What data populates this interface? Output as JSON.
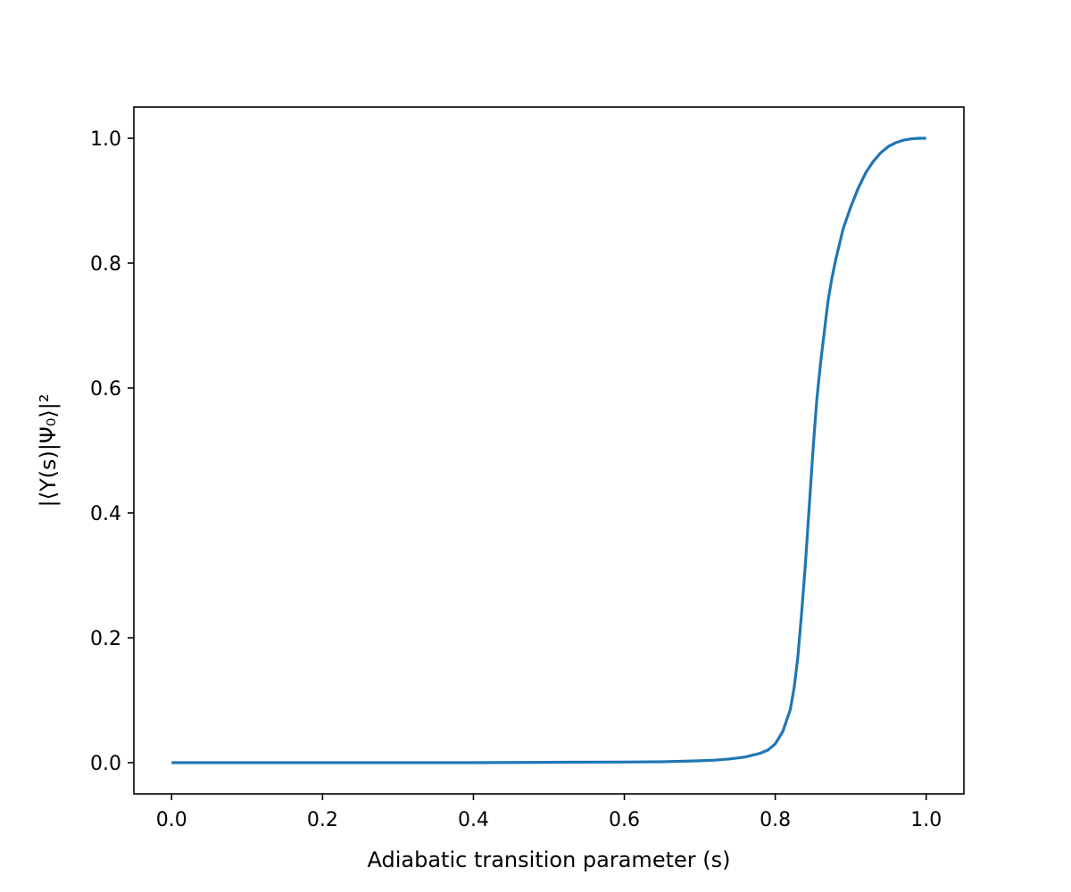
{
  "chart_data": {
    "type": "line",
    "title": "",
    "xlabel": "Adiabatic transition parameter (s)",
    "ylabel": "|⟨Υ(s)|Ψ₀⟩|²",
    "xlim": [
      -0.05,
      1.05
    ],
    "ylim": [
      -0.05,
      1.05
    ],
    "grid": false,
    "x_ticks": [
      0.0,
      0.2,
      0.4,
      0.6,
      0.8,
      1.0
    ],
    "x_tick_labels": [
      "0.0",
      "0.2",
      "0.4",
      "0.6",
      "0.8",
      "1.0"
    ],
    "y_ticks": [
      0.0,
      0.2,
      0.4,
      0.6,
      0.8,
      1.0
    ],
    "y_tick_labels": [
      "0.0",
      "0.2",
      "0.4",
      "0.6",
      "0.8",
      "1.0"
    ],
    "series": [
      {
        "color": "#1f77b4",
        "x": [
          0.0,
          0.1,
          0.2,
          0.3,
          0.4,
          0.5,
          0.6,
          0.65,
          0.7,
          0.72,
          0.74,
          0.76,
          0.78,
          0.79,
          0.8,
          0.81,
          0.82,
          0.825,
          0.83,
          0.835,
          0.84,
          0.845,
          0.85,
          0.855,
          0.86,
          0.865,
          0.87,
          0.875,
          0.88,
          0.885,
          0.89,
          0.9,
          0.91,
          0.92,
          0.93,
          0.94,
          0.95,
          0.96,
          0.97,
          0.98,
          0.99,
          1.0
        ],
        "y": [
          0.0,
          0.0,
          0.0,
          0.0,
          0.0,
          0.0005,
          0.001,
          0.0015,
          0.003,
          0.004,
          0.006,
          0.009,
          0.015,
          0.02,
          0.03,
          0.05,
          0.085,
          0.12,
          0.17,
          0.24,
          0.32,
          0.41,
          0.5,
          0.58,
          0.64,
          0.69,
          0.74,
          0.775,
          0.805,
          0.83,
          0.855,
          0.89,
          0.92,
          0.945,
          0.963,
          0.977,
          0.987,
          0.993,
          0.997,
          0.999,
          1.0,
          1.0
        ]
      }
    ]
  }
}
